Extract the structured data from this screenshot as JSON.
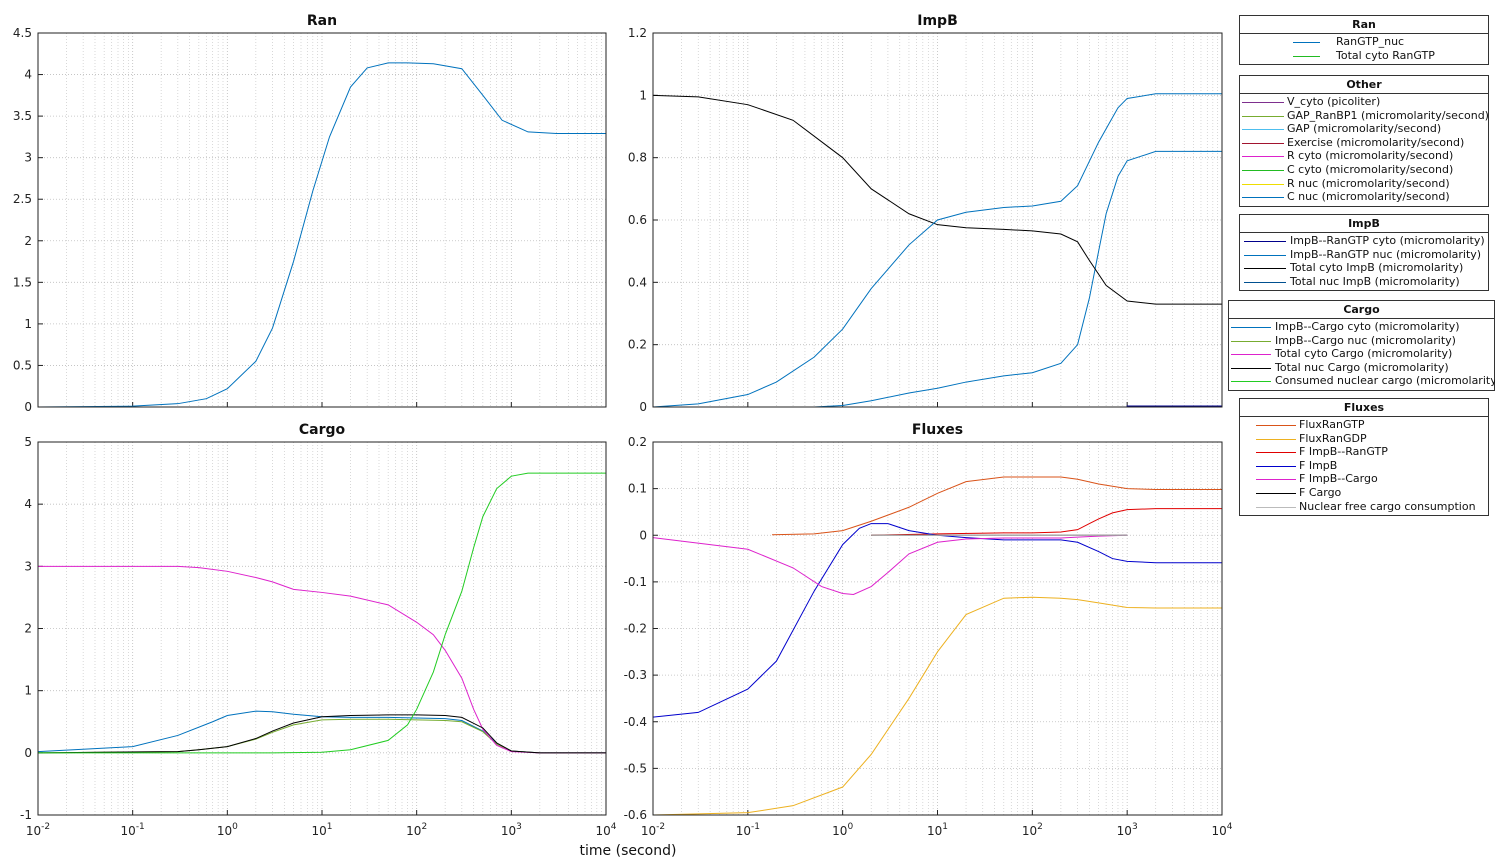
{
  "figure": {
    "xlabel": "time (second)"
  },
  "chart_data": [
    {
      "type": "line",
      "title": "Ran",
      "xscale": "log",
      "xlim": [
        0.01,
        10000
      ],
      "ylim": [
        0,
        4.5
      ],
      "yticks": [
        0,
        0.5,
        1,
        1.5,
        2,
        2.5,
        3,
        3.5,
        4,
        4.5
      ],
      "ytick_labels": [
        "0",
        "0.5",
        "1",
        "1.5",
        "2",
        "2.5",
        "3",
        "3.5",
        "4",
        "4.5"
      ],
      "grid": true,
      "series": [
        {
          "name": "RanGTP_nuc",
          "color": "#0072bd",
          "x": [
            0.01,
            0.1,
            0.3,
            0.6,
            1,
            2,
            3,
            5,
            8,
            12,
            20,
            30,
            50,
            80,
            150,
            300,
            500,
            800,
            1500,
            3000,
            10000
          ],
          "y": [
            0,
            0.01,
            0.04,
            0.1,
            0.22,
            0.55,
            0.95,
            1.75,
            2.6,
            3.25,
            3.85,
            4.08,
            4.14,
            4.14,
            4.13,
            4.07,
            3.75,
            3.45,
            3.31,
            3.29,
            3.29
          ]
        },
        {
          "name": "Total cyto RanGTP",
          "color": "#22bb22",
          "x": [
            0.01,
            10000
          ],
          "y": [
            0,
            0
          ]
        }
      ]
    },
    {
      "type": "line",
      "title": "ImpB",
      "xscale": "log",
      "xlim": [
        0.01,
        10000
      ],
      "ylim": [
        0,
        1.2
      ],
      "yticks": [
        0,
        0.2,
        0.4,
        0.6,
        0.8,
        1,
        1.2
      ],
      "ytick_labels": [
        "0",
        "0.2",
        "0.4",
        "0.6",
        "0.8",
        "1",
        "1.2"
      ],
      "grid": true,
      "series": [
        {
          "name": "ImpB--RanGTP cyto (micromolarity)",
          "color": "#00008b",
          "x": [
            0.05,
            1000,
            1000,
            10000
          ],
          "y": [
            0,
            0,
            0.003,
            0.003
          ]
        },
        {
          "name": "ImpB--RanGTP nuc (micromolarity)",
          "color": "#0072bd",
          "x": [
            0.01,
            0.5,
            1,
            2,
            5,
            10,
            20,
            50,
            100,
            200,
            300,
            400,
            500,
            600,
            800,
            1000,
            2000,
            10000
          ],
          "y": [
            0,
            0,
            0.005,
            0.02,
            0.045,
            0.06,
            0.08,
            0.1,
            0.11,
            0.14,
            0.2,
            0.35,
            0.5,
            0.62,
            0.74,
            0.79,
            0.82,
            0.82
          ]
        },
        {
          "name": "Total cyto ImpB (micromolarity)",
          "color": "#000000",
          "x": [
            0.01,
            0.03,
            0.1,
            0.3,
            1,
            2,
            5,
            10,
            20,
            50,
            100,
            200,
            300,
            400,
            600,
            1000,
            2000,
            10000
          ],
          "y": [
            1,
            0.995,
            0.97,
            0.92,
            0.8,
            0.7,
            0.62,
            0.585,
            0.575,
            0.57,
            0.565,
            0.555,
            0.53,
            0.47,
            0.39,
            0.34,
            0.33,
            0.33
          ]
        },
        {
          "name": "Total nuc ImpB (micromolarity)",
          "color": "#0072bd",
          "x": [
            0.01,
            0.03,
            0.1,
            0.2,
            0.5,
            1,
            2,
            5,
            10,
            20,
            50,
            100,
            200,
            300,
            500,
            800,
            1000,
            2000,
            10000
          ],
          "y": [
            0,
            0.01,
            0.04,
            0.08,
            0.16,
            0.25,
            0.38,
            0.52,
            0.6,
            0.625,
            0.64,
            0.645,
            0.66,
            0.71,
            0.85,
            0.96,
            0.99,
            1.005,
            1.005
          ]
        }
      ]
    },
    {
      "type": "line",
      "title": "Cargo",
      "xscale": "log",
      "xlim": [
        0.01,
        10000
      ],
      "ylim": [
        -1,
        5
      ],
      "yticks": [
        -1,
        0,
        1,
        2,
        3,
        4,
        5
      ],
      "ytick_labels": [
        "-1",
        "0",
        "1",
        "2",
        "3",
        "4",
        "5"
      ],
      "grid": true,
      "series": [
        {
          "name": "ImpB--Cargo cyto (micromolarity)",
          "color": "#0072bd",
          "x": [
            0.01,
            0.1,
            0.3,
            0.7,
            1,
            2,
            3,
            5,
            10,
            20,
            50,
            100,
            200,
            300,
            500,
            700,
            1000,
            2000,
            10000
          ],
          "y": [
            0.02,
            0.1,
            0.28,
            0.5,
            0.6,
            0.67,
            0.66,
            0.62,
            0.58,
            0.57,
            0.57,
            0.56,
            0.55,
            0.52,
            0.35,
            0.15,
            0.03,
            0,
            0
          ]
        },
        {
          "name": "ImpB--Cargo nuc (micromolarity)",
          "color": "#77ac30",
          "x": [
            0.01,
            0.3,
            0.5,
            1,
            2,
            3,
            5,
            10,
            20,
            50,
            100,
            200,
            300,
            500,
            700,
            1000,
            2000,
            10000
          ],
          "y": [
            0,
            0.02,
            0.05,
            0.1,
            0.22,
            0.33,
            0.45,
            0.53,
            0.54,
            0.54,
            0.53,
            0.52,
            0.5,
            0.34,
            0.14,
            0.03,
            0,
            0
          ]
        },
        {
          "name": "Total cyto Cargo (micromolarity)",
          "color": "#dd22cc",
          "x": [
            0.01,
            0.1,
            0.3,
            0.5,
            1,
            2,
            3,
            5,
            10,
            20,
            50,
            100,
            150,
            200,
            300,
            400,
            500,
            700,
            1000,
            2000,
            10000
          ],
          "y": [
            3,
            3,
            3,
            2.98,
            2.92,
            2.82,
            2.75,
            2.63,
            2.58,
            2.52,
            2.38,
            2.1,
            1.9,
            1.65,
            1.2,
            0.7,
            0.38,
            0.12,
            0.02,
            0,
            0
          ]
        },
        {
          "name": "Total nuc Cargo (micromolarity)",
          "color": "#000000",
          "x": [
            0.01,
            0.3,
            0.5,
            1,
            2,
            3,
            5,
            10,
            20,
            50,
            100,
            200,
            300,
            500,
            700,
            1000,
            2000,
            10000
          ],
          "y": [
            0,
            0.02,
            0.05,
            0.1,
            0.23,
            0.35,
            0.48,
            0.58,
            0.6,
            0.61,
            0.61,
            0.6,
            0.57,
            0.4,
            0.16,
            0.03,
            0,
            0
          ]
        },
        {
          "name": "Consumed nuclear cargo (micromolarity)",
          "color": "#22cc22",
          "x": [
            0.01,
            3,
            10,
            20,
            50,
            80,
            100,
            150,
            200,
            300,
            400,
            500,
            700,
            1000,
            1500,
            2000,
            5000,
            10000
          ],
          "y": [
            0,
            0,
            0.01,
            0.05,
            0.2,
            0.45,
            0.7,
            1.3,
            1.9,
            2.6,
            3.3,
            3.8,
            4.25,
            4.45,
            4.5,
            4.5,
            4.5,
            4.5
          ]
        }
      ]
    },
    {
      "type": "line",
      "title": "Fluxes",
      "xscale": "log",
      "xlim": [
        0.01,
        10000
      ],
      "ylim": [
        -0.6,
        0.2
      ],
      "yticks": [
        -0.6,
        -0.5,
        -0.4,
        -0.3,
        -0.2,
        -0.1,
        0,
        0.1,
        0.2
      ],
      "ytick_labels": [
        "-0.6",
        "-0.5",
        "-0.4",
        "-0.3",
        "-0.2",
        "-0.1",
        "0",
        "0.1",
        "0.2"
      ],
      "grid": true,
      "series": [
        {
          "name": "FluxRanGTP",
          "color": "#d95319",
          "x": [
            0.18,
            0.5,
            1,
            2,
            5,
            10,
            20,
            50,
            100,
            200,
            300,
            500,
            1000,
            2000,
            10000
          ],
          "y": [
            0.001,
            0.003,
            0.01,
            0.03,
            0.06,
            0.09,
            0.115,
            0.125,
            0.125,
            0.125,
            0.12,
            0.11,
            0.1,
            0.098,
            0.098
          ]
        },
        {
          "name": "FluxRanGDP",
          "color": "#edb120",
          "x": [
            0.01,
            0.1,
            0.3,
            1,
            2,
            5,
            10,
            20,
            50,
            100,
            200,
            300,
            500,
            1000,
            2000,
            10000
          ],
          "y": [
            -0.6,
            -0.595,
            -0.58,
            -0.54,
            -0.47,
            -0.35,
            -0.25,
            -0.17,
            -0.135,
            -0.133,
            -0.135,
            -0.138,
            -0.145,
            -0.155,
            -0.156,
            -0.156
          ]
        },
        {
          "name": "F ImpB--RanGTP",
          "color": "#e00000",
          "x": [
            2,
            10,
            50,
            100,
            200,
            300,
            400,
            500,
            700,
            1000,
            2000,
            10000
          ],
          "y": [
            0,
            0.003,
            0.005,
            0.005,
            0.007,
            0.012,
            0.025,
            0.035,
            0.048,
            0.055,
            0.057,
            0.057
          ]
        },
        {
          "name": "F ImpB",
          "color": "#0000cc",
          "x": [
            0.01,
            0.03,
            0.1,
            0.2,
            0.5,
            1,
            1.5,
            2,
            3,
            5,
            10,
            20,
            50,
            100,
            200,
            300,
            500,
            700,
            1000,
            2000,
            10000
          ],
          "y": [
            -0.39,
            -0.38,
            -0.33,
            -0.27,
            -0.12,
            -0.02,
            0.015,
            0.025,
            0.025,
            0.01,
            0,
            -0.005,
            -0.01,
            -0.01,
            -0.01,
            -0.015,
            -0.035,
            -0.05,
            -0.056,
            -0.059,
            -0.059
          ]
        },
        {
          "name": "F ImpB--Cargo",
          "color": "#dd22cc",
          "x": [
            0.01,
            0.1,
            0.3,
            0.6,
            1,
            1.3,
            2,
            3,
            5,
            10,
            20,
            50,
            100,
            200,
            300,
            500,
            1000
          ],
          "y": [
            -0.005,
            -0.03,
            -0.07,
            -0.11,
            -0.125,
            -0.127,
            -0.11,
            -0.08,
            -0.04,
            -0.015,
            -0.008,
            -0.006,
            -0.006,
            -0.006,
            -0.004,
            -0.002,
            0
          ]
        },
        {
          "name": "F Cargo",
          "color": "#000000",
          "x": [
            2,
            1000
          ],
          "y": [
            0,
            0
          ]
        },
        {
          "name": "Nuclear free cargo consumption",
          "color": "#bbbbbb",
          "x": [
            2,
            1000
          ],
          "y": [
            0,
            0
          ]
        }
      ]
    }
  ],
  "legends": [
    {
      "title": "Ran",
      "items": [
        {
          "label": "RanGTP_nuc",
          "color": "#0072bd"
        },
        {
          "label": "Total cyto RanGTP",
          "color": "#22bb22"
        }
      ]
    },
    {
      "title": "Other",
      "items": [
        {
          "label": "V_cyto (picoliter)",
          "color": "#7e2f8e"
        },
        {
          "label": "GAP_RanBP1 (micromolarity/second)",
          "color": "#77ac30"
        },
        {
          "label": "GAP (micromolarity/second)",
          "color": "#4dbeee"
        },
        {
          "label": "Exercise (micromolarity/second)",
          "color": "#a2142f"
        },
        {
          "label": "R cyto (micromolarity/second)",
          "color": "#dd22cc"
        },
        {
          "label": "C cyto (micromolarity/second)",
          "color": "#22bb22"
        },
        {
          "label": "R nuc (micromolarity/second)",
          "color": "#eedd00"
        },
        {
          "label": "C nuc (micromolarity/second)",
          "color": "#0072bd"
        }
      ]
    },
    {
      "title": "ImpB",
      "items": [
        {
          "label": "ImpB--RanGTP cyto (micromolarity)",
          "color": "#00008b"
        },
        {
          "label": "ImpB--RanGTP nuc (micromolarity)",
          "color": "#0072bd"
        },
        {
          "label": "Total cyto ImpB (micromolarity)",
          "color": "#000000"
        },
        {
          "label": "Total nuc ImpB (micromolarity)",
          "color": "#005090"
        }
      ]
    },
    {
      "title": "Cargo",
      "items": [
        {
          "label": "ImpB--Cargo cyto (micromolarity)",
          "color": "#0072bd"
        },
        {
          "label": "ImpB--Cargo nuc (micromolarity)",
          "color": "#77ac30"
        },
        {
          "label": "Total cyto Cargo (micromolarity)",
          "color": "#dd22cc"
        },
        {
          "label": "Total nuc Cargo (micromolarity)",
          "color": "#000000"
        },
        {
          "label": "Consumed nuclear cargo (micromolarity)",
          "color": "#22cc22"
        }
      ]
    },
    {
      "title": "Fluxes",
      "items": [
        {
          "label": "FluxRanGTP",
          "color": "#d95319"
        },
        {
          "label": "FluxRanGDP",
          "color": "#edb120"
        },
        {
          "label": "F ImpB--RanGTP",
          "color": "#e00000"
        },
        {
          "label": "F ImpB",
          "color": "#0000cc"
        },
        {
          "label": "F ImpB--Cargo",
          "color": "#dd22cc"
        },
        {
          "label": "F Cargo",
          "color": "#000000"
        },
        {
          "label": "Nuclear free cargo consumption",
          "color": "#bbbbbb"
        }
      ]
    }
  ]
}
